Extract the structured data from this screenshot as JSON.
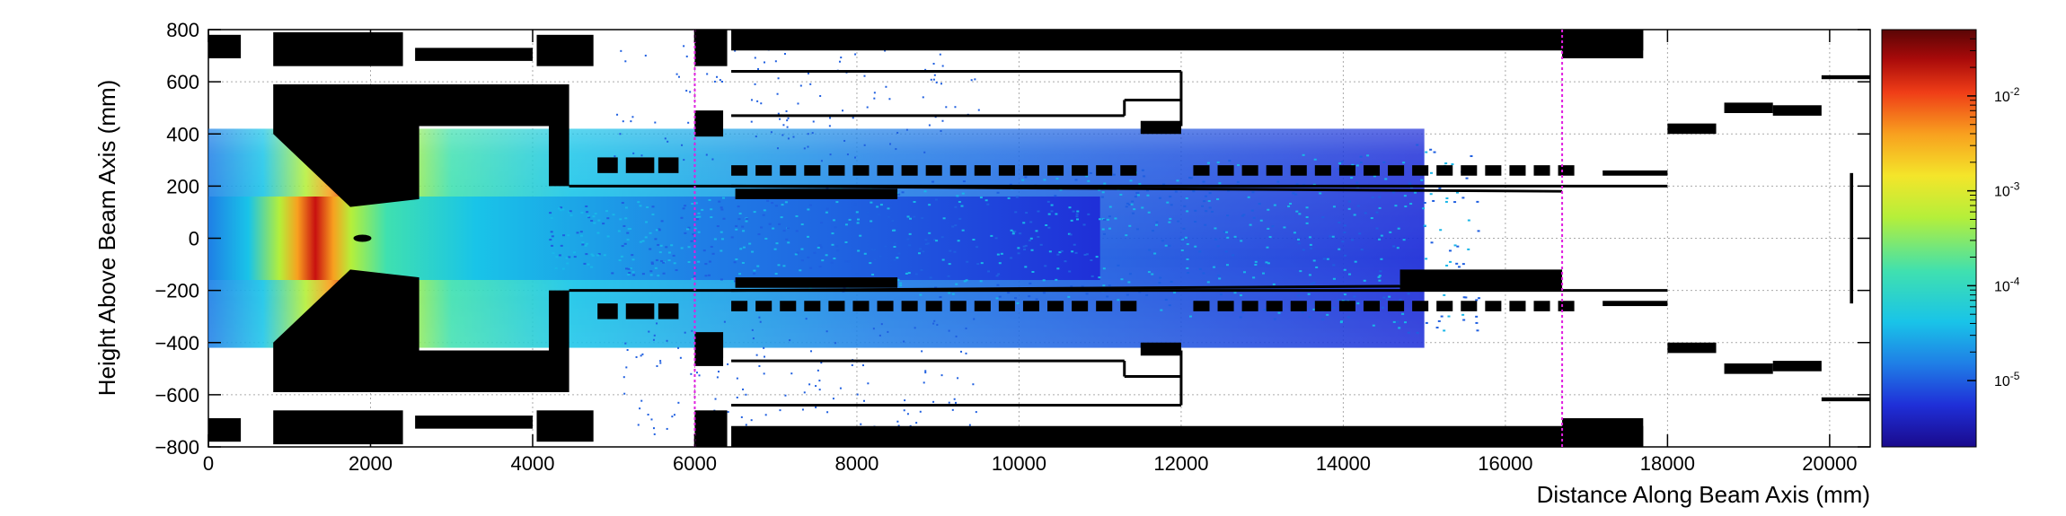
{
  "chart_data": {
    "type": "heatmap",
    "xlabel": "Distance Along Beam Axis (mm)",
    "ylabel": "Height Above Beam Axis (mm)",
    "xlim": [
      0,
      20500
    ],
    "ylim": [
      -800,
      800
    ],
    "x_ticks": [
      0,
      2000,
      4000,
      6000,
      8000,
      10000,
      12000,
      14000,
      16000,
      18000,
      20000
    ],
    "y_ticks": [
      -800,
      -600,
      -400,
      -200,
      0,
      200,
      400,
      600,
      800
    ],
    "x_tick_labels": [
      "0",
      "2000",
      "4000",
      "6000",
      "8000",
      "10000",
      "12000",
      "14000",
      "16000",
      "18000",
      "20000"
    ],
    "y_tick_labels": [
      "−800",
      "−600",
      "−400",
      "−200",
      "0",
      "200",
      "400",
      "600",
      "800"
    ],
    "grid": true,
    "color_scale": {
      "type": "log",
      "range": [
        2e-06,
        0.05
      ],
      "labels": [
        {
          "base": "10",
          "exp": "-2",
          "value": 0.01
        },
        {
          "base": "10",
          "exp": "-3",
          "value": 0.001
        },
        {
          "base": "10",
          "exp": "-4",
          "value": 0.0001
        },
        {
          "base": "10",
          "exp": "-5",
          "value": 1e-05
        }
      ],
      "colormap": [
        "#1a0a8c",
        "#1f2fd8",
        "#1f7fe6",
        "#19c4e8",
        "#3fe0b0",
        "#b5ef3a",
        "#f4e52a",
        "#f8a01f",
        "#ef3d17",
        "#a80a0a",
        "#5a0505"
      ]
    },
    "peak": {
      "x": 1900,
      "y": 0
    },
    "marker_lines": [
      {
        "x": 6000,
        "color": "#e020e0"
      },
      {
        "x": 16700,
        "color": "#e020e0"
      }
    ]
  }
}
